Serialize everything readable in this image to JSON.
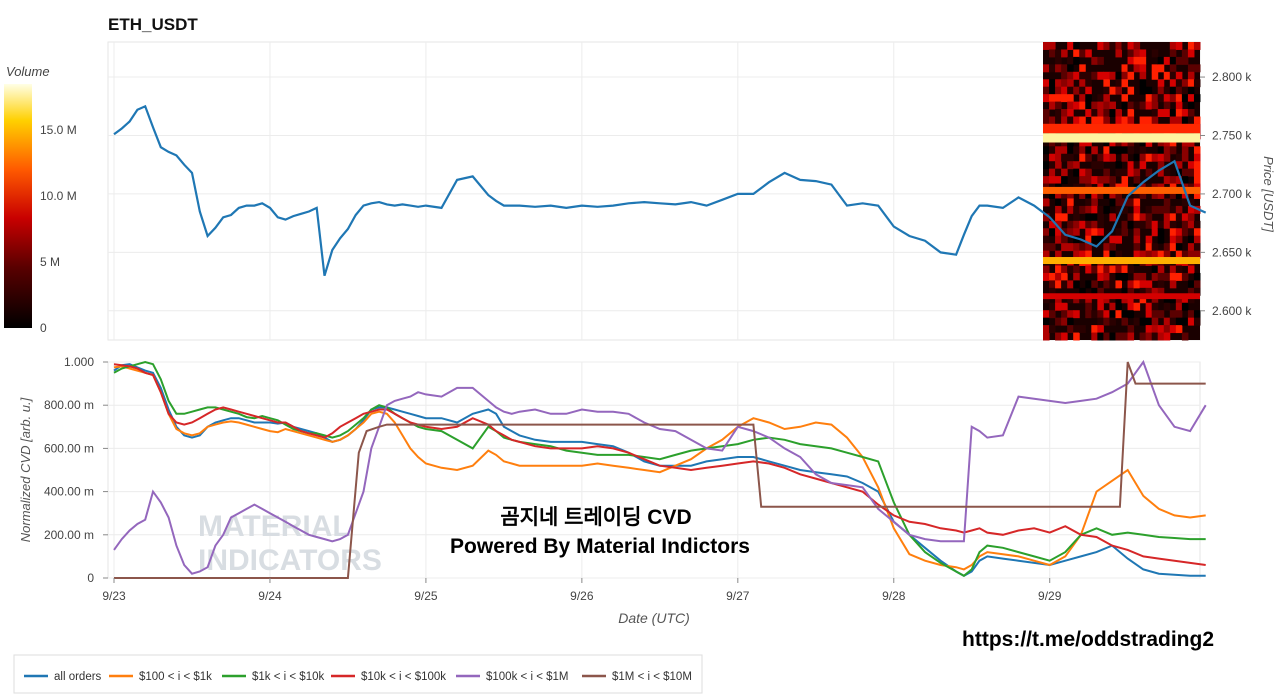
{
  "title": "ETH_USDT",
  "colorbar": {
    "label": "Volume",
    "ticks": [
      "0",
      "5 M",
      "10.0 M",
      "15.0 M"
    ]
  },
  "overlay": {
    "line1": "곰지네 트레이딩 CVD",
    "line2": "Powered By Material Indictors"
  },
  "url_text": "https://t.me/oddstrading2",
  "watermark": {
    "line1": "MATERIAL",
    "line2": "INDICATORS"
  },
  "x_axis": {
    "label": "Date (UTC)",
    "ticks": [
      "9/23",
      "9/24",
      "9/25",
      "9/26",
      "9/27",
      "9/28",
      "9/29"
    ]
  },
  "colors": {
    "all orders": "#1f77b4",
    "$100 < i < $1k": "#ff7f0e",
    "$1k < i < $10k": "#2ca02c",
    "$10k < i < $100k": "#d62728",
    "$100k < i < $1M": "#9467bd",
    "$1M < i < $10M": "#8c564b"
  },
  "chart_data": [
    {
      "type": "line",
      "title": "ETH_USDT",
      "ylabel": "Price [USDT]",
      "ylim": [
        2575,
        2830
      ],
      "y_ticks": [
        "2.600 k",
        "2.650 k",
        "2.700 k",
        "2.750 k",
        "2.800 k"
      ],
      "x_range": [
        0,
        7
      ],
      "x": [
        0.0,
        0.05,
        0.1,
        0.15,
        0.2,
        0.25,
        0.3,
        0.35,
        0.4,
        0.45,
        0.5,
        0.55,
        0.6,
        0.65,
        0.7,
        0.75,
        0.8,
        0.85,
        0.9,
        0.95,
        1.0,
        1.05,
        1.1,
        1.15,
        1.2,
        1.25,
        1.3,
        1.35,
        1.4,
        1.45,
        1.5,
        1.55,
        1.6,
        1.65,
        1.7,
        1.75,
        1.8,
        1.85,
        1.9,
        1.95,
        2.0,
        2.1,
        2.2,
        2.3,
        2.4,
        2.45,
        2.5,
        2.55,
        2.6,
        2.7,
        2.8,
        2.9,
        3.0,
        3.1,
        3.2,
        3.3,
        3.4,
        3.5,
        3.6,
        3.7,
        3.8,
        3.9,
        4.0,
        4.1,
        4.2,
        4.3,
        4.4,
        4.5,
        4.6,
        4.7,
        4.8,
        4.9,
        5.0,
        5.1,
        5.2,
        5.3,
        5.4,
        5.45,
        5.5,
        5.55,
        5.6,
        5.7,
        5.8,
        5.9,
        6.0,
        6.1,
        6.2,
        6.3,
        6.4,
        6.5,
        6.6,
        6.7,
        6.8,
        6.9,
        7.0
      ],
      "series": [
        {
          "name": "all orders",
          "values": [
            2751,
            2756,
            2762,
            2772,
            2775,
            2757,
            2740,
            2736,
            2733,
            2725,
            2718,
            2685,
            2664,
            2671,
            2680,
            2682,
            2688,
            2690,
            2690,
            2692,
            2688,
            2680,
            2678,
            2681,
            2683,
            2685,
            2688,
            2630,
            2652,
            2662,
            2670,
            2682,
            2690,
            2692,
            2693,
            2691,
            2690,
            2691,
            2690,
            2689,
            2690,
            2688,
            2712,
            2715,
            2699,
            2694,
            2690,
            2690,
            2690,
            2689,
            2690,
            2688,
            2690,
            2689,
            2690,
            2692,
            2693,
            2692,
            2691,
            2693,
            2690,
            2695,
            2700,
            2700,
            2710,
            2718,
            2712,
            2711,
            2708,
            2690,
            2692,
            2690,
            2672,
            2664,
            2660,
            2650,
            2648,
            2665,
            2681,
            2690,
            2690,
            2688,
            2697,
            2690,
            2680,
            2665,
            2661,
            2655,
            2668,
            2698,
            2710,
            2720,
            2728,
            2690,
            2684
          ]
        }
      ],
      "heatmap": {
        "type": "heatmap",
        "x_range": [
          6.0,
          7.0
        ],
        "y_range": [
          2575,
          2830
        ],
        "bands": [
          {
            "y": [
              2744,
              2752
            ],
            "volume": 15.5
          },
          {
            "y": [
              2640,
              2646
            ],
            "volume": 12.5
          },
          {
            "y": [
              2700,
              2706
            ],
            "volume": 10.5
          },
          {
            "y": [
              2752,
              2760
            ],
            "volume": 9.0
          },
          {
            "y": [
              2610,
              2615
            ],
            "volume": 6.0
          }
        ]
      }
    },
    {
      "type": "line",
      "ylabel": "Normalized CVD [arb. u.]",
      "xlabel": "Date (UTC)",
      "ylim": [
        0,
        1000
      ],
      "y_ticks": [
        "0",
        "200.00 m",
        "400.00 m",
        "600.00 m",
        "800.00 m",
        "1.000"
      ],
      "x_range": [
        0,
        7
      ],
      "x": [
        0.0,
        0.05,
        0.1,
        0.15,
        0.2,
        0.25,
        0.3,
        0.35,
        0.4,
        0.45,
        0.5,
        0.55,
        0.6,
        0.65,
        0.7,
        0.75,
        0.8,
        0.85,
        0.9,
        0.95,
        1.0,
        1.05,
        1.1,
        1.15,
        1.2,
        1.25,
        1.3,
        1.35,
        1.4,
        1.45,
        1.5,
        1.55,
        1.6,
        1.65,
        1.7,
        1.75,
        1.8,
        1.85,
        1.9,
        1.95,
        2.0,
        2.1,
        2.2,
        2.3,
        2.4,
        2.45,
        2.5,
        2.55,
        2.6,
        2.7,
        2.8,
        2.9,
        3.0,
        3.1,
        3.2,
        3.3,
        3.4,
        3.5,
        3.6,
        3.7,
        3.8,
        3.9,
        4.0,
        4.1,
        4.2,
        4.3,
        4.4,
        4.5,
        4.6,
        4.7,
        4.8,
        4.9,
        5.0,
        5.1,
        5.2,
        5.3,
        5.4,
        5.45,
        5.5,
        5.55,
        5.6,
        5.7,
        5.8,
        5.9,
        6.0,
        6.1,
        6.2,
        6.3,
        6.4,
        6.5,
        6.6,
        6.7,
        6.8,
        6.9,
        7.0
      ],
      "series": [
        {
          "name": "all orders",
          "values": [
            960,
            985,
            990,
            975,
            960,
            950,
            880,
            780,
            700,
            660,
            650,
            660,
            700,
            720,
            730,
            740,
            740,
            730,
            720,
            720,
            720,
            715,
            720,
            700,
            690,
            680,
            670,
            650,
            630,
            640,
            660,
            690,
            730,
            780,
            790,
            790,
            780,
            770,
            760,
            750,
            740,
            740,
            720,
            760,
            780,
            760,
            700,
            680,
            660,
            640,
            630,
            630,
            630,
            620,
            610,
            580,
            540,
            520,
            520,
            520,
            540,
            550,
            560,
            560,
            540,
            520,
            500,
            490,
            480,
            470,
            440,
            400,
            260,
            200,
            140,
            80,
            30,
            10,
            30,
            80,
            100,
            90,
            80,
            70,
            60,
            80,
            100,
            120,
            150,
            90,
            40,
            20,
            15,
            10,
            10
          ]
        },
        {
          "name": "$100 < i < $1k",
          "values": [
            975,
            980,
            970,
            960,
            950,
            940,
            860,
            760,
            690,
            670,
            660,
            670,
            700,
            710,
            720,
            725,
            720,
            710,
            700,
            690,
            680,
            675,
            690,
            680,
            670,
            660,
            650,
            640,
            630,
            640,
            660,
            690,
            720,
            760,
            770,
            760,
            720,
            660,
            600,
            560,
            530,
            510,
            500,
            520,
            590,
            570,
            540,
            530,
            520,
            520,
            520,
            520,
            520,
            530,
            520,
            510,
            500,
            490,
            520,
            550,
            600,
            640,
            700,
            740,
            720,
            690,
            700,
            720,
            710,
            650,
            560,
            420,
            230,
            110,
            80,
            60,
            50,
            40,
            60,
            100,
            120,
            110,
            100,
            80,
            60,
            100,
            200,
            400,
            450,
            500,
            380,
            320,
            290,
            280,
            290
          ]
        },
        {
          "name": "$1k < i < $10k",
          "values": [
            950,
            970,
            980,
            990,
            1000,
            990,
            920,
            820,
            760,
            760,
            770,
            780,
            790,
            790,
            780,
            770,
            760,
            745,
            740,
            750,
            740,
            730,
            710,
            690,
            680,
            670,
            670,
            660,
            650,
            660,
            680,
            710,
            740,
            780,
            800,
            790,
            760,
            740,
            720,
            700,
            690,
            680,
            640,
            600,
            700,
            680,
            650,
            640,
            630,
            620,
            610,
            590,
            580,
            570,
            570,
            570,
            560,
            550,
            570,
            590,
            600,
            610,
            620,
            640,
            650,
            640,
            620,
            610,
            600,
            580,
            560,
            540,
            350,
            200,
            120,
            70,
            30,
            10,
            40,
            120,
            150,
            140,
            120,
            100,
            80,
            120,
            200,
            230,
            200,
            210,
            200,
            190,
            185,
            180,
            180
          ]
        },
        {
          "name": "$10k < i < $100k",
          "values": [
            990,
            985,
            980,
            970,
            950,
            940,
            860,
            760,
            720,
            710,
            720,
            740,
            760,
            780,
            790,
            780,
            770,
            760,
            750,
            740,
            730,
            720,
            720,
            700,
            680,
            670,
            660,
            650,
            670,
            700,
            720,
            740,
            760,
            770,
            780,
            780,
            760,
            740,
            720,
            710,
            700,
            690,
            700,
            740,
            710,
            680,
            660,
            640,
            630,
            610,
            600,
            600,
            600,
            610,
            600,
            580,
            550,
            520,
            510,
            500,
            510,
            520,
            530,
            540,
            530,
            510,
            480,
            460,
            440,
            420,
            400,
            340,
            290,
            260,
            250,
            230,
            220,
            210,
            220,
            230,
            210,
            200,
            220,
            230,
            210,
            240,
            200,
            190,
            150,
            130,
            100,
            90,
            80,
            70,
            60
          ]
        },
        {
          "name": "$100k < i < $1M",
          "values": [
            130,
            180,
            220,
            250,
            270,
            400,
            350,
            280,
            150,
            60,
            20,
            30,
            50,
            150,
            200,
            280,
            300,
            320,
            340,
            320,
            300,
            280,
            260,
            240,
            220,
            200,
            190,
            180,
            170,
            180,
            200,
            300,
            400,
            600,
            700,
            800,
            820,
            830,
            840,
            860,
            850,
            840,
            880,
            880,
            820,
            790,
            770,
            760,
            770,
            780,
            760,
            760,
            780,
            770,
            770,
            760,
            720,
            690,
            680,
            640,
            600,
            590,
            700,
            680,
            650,
            600,
            560,
            480,
            440,
            430,
            420,
            320,
            260,
            200,
            180,
            170,
            170,
            170,
            700,
            680,
            650,
            660,
            840,
            830,
            820,
            810,
            820,
            830,
            860,
            900,
            1000,
            800,
            700,
            680,
            800
          ]
        },
        {
          "name": "$1M < i < $10M",
          "values": [
            0,
            0,
            0,
            0,
            0,
            0,
            0,
            0,
            0,
            0,
            0,
            0,
            0,
            0,
            0,
            0,
            0,
            0,
            0,
            0,
            0,
            0,
            0,
            0,
            0,
            0,
            0,
            0,
            0,
            0,
            0,
            0,
            0,
            0,
            0,
            0,
            0,
            0,
            0,
            0,
            0,
            0,
            0,
            0,
            0,
            0,
            0,
            0,
            0,
            0,
            0,
            0,
            0,
            0,
            0,
            0,
            0,
            0,
            0,
            0,
            0,
            0,
            0,
            0,
            0,
            0,
            0,
            0,
            0,
            0,
            0,
            0,
            0,
            0,
            0,
            0,
            0,
            0,
            0,
            0,
            0,
            0,
            0,
            0,
            0,
            0,
            0,
            0,
            0,
            0,
            0,
            0,
            0,
            0,
            0
          ]
        }
      ],
      "step_series": {
        "name": "$1M < i < $10M",
        "x": [
          0,
          1.5,
          1.57,
          1.62,
          1.7,
          1.75,
          3.1,
          3.12,
          3.25,
          4.1,
          4.15,
          5.2,
          5.6,
          6.05,
          6.3,
          6.45,
          6.5,
          6.55,
          7.0
        ],
        "values": [
          0,
          0,
          580,
          680,
          700,
          710,
          710,
          710,
          710,
          710,
          330,
          330,
          330,
          330,
          330,
          330,
          1000,
          900,
          900
        ]
      }
    }
  ],
  "legend": [
    {
      "label": "all orders"
    },
    {
      "label": "$100 < i < $1k"
    },
    {
      "label": "$1k < i < $10k"
    },
    {
      "label": "$10k < i < $100k"
    },
    {
      "label": "$100k < i < $1M"
    },
    {
      "label": "$1M < i < $10M"
    }
  ]
}
